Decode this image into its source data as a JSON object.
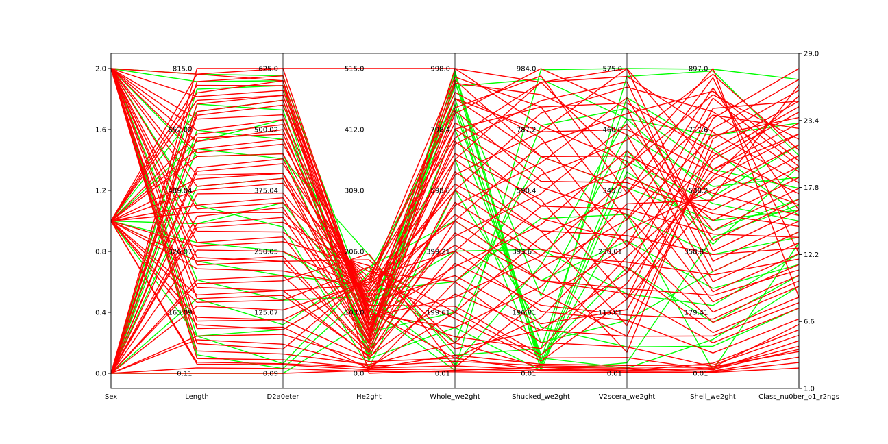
{
  "chart_data": {
    "type": "parallel_coordinates",
    "axes": [
      {
        "name": "Sex",
        "ticks": [
          "0.0",
          "0.4",
          "0.8",
          "1.2",
          "1.6",
          "2.0"
        ],
        "range": [
          0.0,
          2.0
        ]
      },
      {
        "name": "Length",
        "ticks": [
          "0.11",
          "163.09",
          "326.07",
          "489.04",
          "652.02",
          "815.0"
        ],
        "range": [
          0.11,
          815.0
        ]
      },
      {
        "name": "D2a0eter",
        "ticks": [
          "0.09",
          "125.07",
          "250.05",
          "375.04",
          "500.02",
          "625.0"
        ],
        "range": [
          0.09,
          625.0
        ]
      },
      {
        "name": "He2ght",
        "ticks": [
          "0.0",
          "103.0",
          "206.0",
          "309.0",
          "412.0",
          "515.0"
        ],
        "range": [
          0.0,
          515.0
        ]
      },
      {
        "name": "Whole_we2ght",
        "ticks": [
          "0.01",
          "199.61",
          "399.21",
          "598.8",
          "798.4",
          "998.0"
        ],
        "range": [
          0.01,
          998.0
        ]
      },
      {
        "name": "Shucked_we2ght",
        "ticks": [
          "0.01",
          "196.81",
          "393.61",
          "590.4",
          "787.2",
          "984.0"
        ],
        "range": [
          0.01,
          984.0
        ]
      },
      {
        "name": "V2scera_we2ght",
        "ticks": [
          "0.01",
          "115.01",
          "230.01",
          "345.0",
          "460.0",
          "575.0"
        ],
        "range": [
          0.01,
          575.0
        ]
      },
      {
        "name": "Shell_we2ght",
        "ticks": [
          "0.01",
          "179.41",
          "358.81",
          "538.2",
          "717.6",
          "897.0"
        ],
        "range": [
          0.01,
          897.0
        ]
      },
      {
        "name": "Class_nu0ber_o1_r2ngs",
        "ticks": [
          "1.0",
          "6.6",
          "12.2",
          "17.8",
          "23.4",
          "29.0"
        ],
        "range": [
          1.0,
          29.0
        ]
      }
    ],
    "left_axis_ticks": [
      "0.0",
      "0.4",
      "0.8",
      "1.2",
      "1.6",
      "2.0"
    ],
    "right_axis_ticks": [
      "1.0",
      "6.6",
      "12.2",
      "17.8",
      "23.4",
      "29.0"
    ],
    "classes": [
      {
        "name": "",
        "color": "#ff0000"
      },
      {
        "name": "",
        "color": "#00ff00"
      }
    ],
    "series": [
      {
        "class": 1,
        "values": [
          2.0,
          800,
          610,
          110,
          10,
          980,
          575,
          895,
          28.0
        ]
      },
      {
        "class": 1,
        "values": [
          2.0,
          780,
          600,
          80,
          990,
          30,
          300,
          10,
          13.0
        ]
      },
      {
        "class": 1,
        "values": [
          1.0,
          700,
          560,
          30,
          980,
          10,
          20,
          400,
          16.5
        ]
      },
      {
        "class": 1,
        "values": [
          0.0,
          760,
          590,
          20,
          960,
          40,
          560,
          890,
          21.0
        ]
      },
      {
        "class": 1,
        "values": [
          0.0,
          0.11,
          0.09,
          90,
          940,
          950,
          480,
          700,
          24.0
        ]
      },
      {
        "class": 1,
        "values": [
          1.0,
          300,
          200,
          150,
          900,
          50,
          10,
          100,
          9.0
        ]
      },
      {
        "class": 1,
        "values": [
          2.0,
          100,
          20,
          170,
          860,
          60,
          200,
          150,
          10.0
        ]
      },
      {
        "class": 1,
        "values": [
          0.0,
          500,
          400,
          60,
          800,
          100,
          100,
          300,
          14.0
        ]
      },
      {
        "class": 1,
        "values": [
          1.0,
          620,
          520,
          40,
          700,
          20,
          400,
          500,
          15.0
        ]
      },
      {
        "class": 1,
        "values": [
          2.0,
          450,
          300,
          10,
          600,
          150,
          50,
          80,
          7.0
        ]
      },
      {
        "class": 1,
        "values": [
          0.0,
          200,
          100,
          180,
          500,
          300,
          250,
          250,
          11.0
        ]
      },
      {
        "class": 1,
        "values": [
          1.0,
          350,
          250,
          120,
          400,
          400,
          150,
          200,
          12.0
        ]
      },
      {
        "class": 1,
        "values": [
          2.0,
          50,
          10,
          140,
          300,
          500,
          300,
          350,
          13.5
        ]
      },
      {
        "class": 1,
        "values": [
          0.0,
          650,
          480,
          70,
          200,
          700,
          350,
          450,
          16.0
        ]
      },
      {
        "class": 1,
        "values": [
          1.0,
          100,
          90,
          160,
          100,
          800,
          500,
          600,
          18.0
        ]
      },
      {
        "class": 1,
        "values": [
          2.0,
          580,
          450,
          50,
          950,
          250,
          450,
          550,
          19.0
        ]
      },
      {
        "class": 1,
        "values": [
          0.0,
          720,
          540,
          25,
          150,
          10,
          380,
          420,
          17.0
        ]
      },
      {
        "class": 1,
        "values": [
          1.0,
          400,
          350,
          100,
          880,
          30,
          420,
          380,
          20.0
        ]
      },
      {
        "class": 1,
        "values": [
          2.0,
          250,
          150,
          130,
          30,
          350,
          480,
          520,
          22.0
        ]
      },
      {
        "class": 1,
        "values": [
          0.0,
          600,
          440,
          200,
          60,
          80,
          520,
          660,
          15.5
        ]
      },
      {
        "class": 0,
        "values": [
          0.0,
          0.11,
          0.09,
          5,
          300,
          100,
          50,
          20,
          3.0
        ]
      },
      {
        "class": 0,
        "values": [
          1.0,
          30,
          20,
          10,
          200,
          50,
          30,
          10,
          4.0
        ]
      },
      {
        "class": 0,
        "values": [
          2.0,
          60,
          40,
          15,
          100,
          20,
          10,
          5,
          2.0
        ]
      },
      {
        "class": 0,
        "values": [
          0.0,
          100,
          80,
          20,
          50,
          10,
          5,
          30,
          5.0
        ]
      },
      {
        "class": 0,
        "values": [
          1.0,
          150,
          110,
          25,
          400,
          200,
          100,
          60,
          6.0
        ]
      },
      {
        "class": 0,
        "values": [
          2.0,
          200,
          160,
          30,
          500,
          300,
          150,
          90,
          7.0
        ]
      },
      {
        "class": 0,
        "values": [
          0.0,
          250,
          200,
          35,
          600,
          400,
          200,
          120,
          8.0
        ]
      },
      {
        "class": 0,
        "values": [
          1.0,
          300,
          240,
          40,
          700,
          500,
          250,
          150,
          9.0
        ]
      },
      {
        "class": 0,
        "values": [
          2.0,
          350,
          280,
          45,
          800,
          600,
          300,
          180,
          10.0
        ]
      },
      {
        "class": 0,
        "values": [
          0.0,
          400,
          320,
          50,
          900,
          700,
          350,
          210,
          11.0
        ]
      },
      {
        "class": 0,
        "values": [
          1.0,
          450,
          360,
          55,
          998,
          800,
          400,
          240,
          12.0
        ]
      },
      {
        "class": 0,
        "values": [
          2.0,
          500,
          400,
          60,
          950,
          900,
          450,
          270,
          13.0
        ]
      },
      {
        "class": 0,
        "values": [
          0.0,
          550,
          440,
          65,
          850,
          984,
          500,
          300,
          14.0
        ]
      },
      {
        "class": 0,
        "values": [
          1.0,
          600,
          480,
          70,
          750,
          880,
          550,
          330,
          15.0
        ]
      },
      {
        "class": 0,
        "values": [
          2.0,
          650,
          520,
          75,
          650,
          780,
          575,
          360,
          16.0
        ]
      },
      {
        "class": 0,
        "values": [
          0.0,
          700,
          560,
          80,
          550,
          680,
          520,
          390,
          17.0
        ]
      },
      {
        "class": 0,
        "values": [
          1.0,
          750,
          600,
          85,
          450,
          580,
          470,
          420,
          18.0
        ]
      },
      {
        "class": 0,
        "values": [
          2.0,
          800,
          625,
          90,
          350,
          480,
          420,
          450,
          19.0
        ]
      },
      {
        "class": 0,
        "values": [
          0.0,
          780,
          610,
          95,
          250,
          380,
          370,
          480,
          20.0
        ]
      },
      {
        "class": 0,
        "values": [
          1.0,
          730,
          570,
          100,
          150,
          280,
          320,
          510,
          21.0
        ]
      },
      {
        "class": 0,
        "values": [
          2.0,
          680,
          530,
          105,
          50,
          180,
          270,
          540,
          22.0
        ]
      },
      {
        "class": 0,
        "values": [
          0.0,
          630,
          490,
          110,
          120,
          80,
          220,
          570,
          23.0
        ]
      },
      {
        "class": 0,
        "values": [
          1.0,
          580,
          450,
          115,
          220,
          60,
          170,
          600,
          24.0
        ]
      },
      {
        "class": 0,
        "values": [
          2.0,
          530,
          410,
          120,
          320,
          160,
          120,
          630,
          25.0
        ]
      },
      {
        "class": 0,
        "values": [
          0.0,
          480,
          370,
          125,
          420,
          260,
          70,
          660,
          26.0
        ]
      },
      {
        "class": 0,
        "values": [
          1.0,
          430,
          330,
          130,
          520,
          360,
          40,
          690,
          27.0
        ]
      },
      {
        "class": 0,
        "values": [
          2.0,
          380,
          290,
          135,
          620,
          460,
          90,
          720,
          28.0
        ]
      },
      {
        "class": 0,
        "values": [
          0.0,
          330,
          250,
          140,
          720,
          560,
          140,
          750,
          29.0
        ]
      },
      {
        "class": 0,
        "values": [
          1.0,
          280,
          210,
          145,
          820,
          660,
          190,
          780,
          26.0
        ]
      },
      {
        "class": 0,
        "values": [
          2.0,
          230,
          170,
          150,
          920,
          760,
          240,
          810,
          20.0
        ]
      },
      {
        "class": 0,
        "values": [
          0.0,
          180,
          130,
          155,
          970,
          860,
          290,
          840,
          16.0
        ]
      },
      {
        "class": 0,
        "values": [
          1.0,
          130,
          90,
          160,
          870,
          960,
          340,
          870,
          12.0
        ]
      },
      {
        "class": 0,
        "values": [
          2.0,
          80,
          50,
          165,
          770,
          940,
          390,
          897,
          8.0
        ]
      },
      {
        "class": 0,
        "values": [
          0.0,
          815,
          625,
          515,
          998,
          940,
          575,
          600,
          23.0
        ]
      },
      {
        "class": 0,
        "values": [
          1.0,
          800,
          600,
          0,
          10,
          20,
          5,
          15,
          3.5
        ]
      },
      {
        "class": 0,
        "values": [
          2.0,
          120,
          95,
          8,
          60,
          30,
          15,
          25,
          4.5
        ]
      },
      {
        "class": 0,
        "values": [
          0.0,
          90,
          60,
          12,
          40,
          25,
          12,
          18,
          5.5
        ]
      },
      {
        "class": 0,
        "values": [
          1.0,
          210,
          170,
          28,
          260,
          140,
          70,
          110,
          7.5
        ]
      },
      {
        "class": 0,
        "values": [
          2.0,
          310,
          230,
          38,
          360,
          220,
          110,
          160,
          9.5
        ]
      },
      {
        "class": 0,
        "values": [
          0.0,
          420,
          340,
          52,
          460,
          300,
          160,
          230,
          10.5
        ]
      },
      {
        "class": 0,
        "values": [
          1.0,
          520,
          410,
          62,
          560,
          380,
          210,
          290,
          11.5
        ]
      },
      {
        "class": 0,
        "values": [
          2.0,
          620,
          500,
          72,
          660,
          460,
          260,
          350,
          12.5
        ]
      },
      {
        "class": 0,
        "values": [
          0.0,
          720,
          570,
          82,
          760,
          540,
          310,
          410,
          13.5
        ]
      },
      {
        "class": 0,
        "values": [
          1.0,
          770,
          590,
          92,
          860,
          620,
          360,
          470,
          14.5
        ]
      },
      {
        "class": 0,
        "values": [
          2.0,
          740,
          580,
          102,
          960,
          700,
          410,
          530,
          15.5
        ]
      },
      {
        "class": 0,
        "values": [
          0.0,
          690,
          550,
          112,
          900,
          780,
          460,
          590,
          16.5
        ]
      },
      {
        "class": 0,
        "values": [
          1.0,
          640,
          510,
          122,
          800,
          860,
          510,
          650,
          17.5
        ]
      },
      {
        "class": 0,
        "values": [
          2.0,
          590,
          470,
          132,
          700,
          940,
          560,
          710,
          18.5
        ]
      },
      {
        "class": 0,
        "values": [
          0.0,
          540,
          430,
          142,
          600,
          840,
          540,
          770,
          19.5
        ]
      },
      {
        "class": 0,
        "values": [
          1.0,
          490,
          390,
          152,
          500,
          740,
          490,
          830,
          20.5
        ]
      },
      {
        "class": 0,
        "values": [
          2.0,
          440,
          350,
          162,
          400,
          640,
          440,
          880,
          21.5
        ]
      },
      {
        "class": 0,
        "values": [
          0.0,
          390,
          310,
          172,
          300,
          540,
          390,
          820,
          22.5
        ]
      },
      {
        "class": 0,
        "values": [
          1.0,
          340,
          270,
          182,
          200,
          440,
          340,
          760,
          23.5
        ]
      },
      {
        "class": 0,
        "values": [
          2.0,
          290,
          230,
          192,
          100,
          340,
          290,
          700,
          24.5
        ]
      },
      {
        "class": 0,
        "values": [
          0.0,
          240,
          190,
          202,
          20,
          240,
          240,
          640,
          25.5
        ]
      },
      {
        "class": 0,
        "values": [
          1.0,
          190,
          150,
          180,
          80,
          140,
          190,
          580,
          26.5
        ]
      },
      {
        "class": 0,
        "values": [
          2.0,
          140,
          110,
          160,
          180,
          40,
          140,
          520,
          27.5
        ]
      },
      {
        "class": 0,
        "values": [
          0.0,
          15,
          10,
          3,
          5,
          2,
          2,
          3,
          1.5
        ]
      },
      {
        "class": 0,
        "values": [
          1.0,
          25,
          18,
          6,
          15,
          8,
          4,
          7,
          2.5
        ]
      },
      {
        "class": 0,
        "values": [
          2.0,
          40,
          28,
          9,
          25,
          12,
          8,
          12,
          3.2
        ]
      }
    ]
  }
}
